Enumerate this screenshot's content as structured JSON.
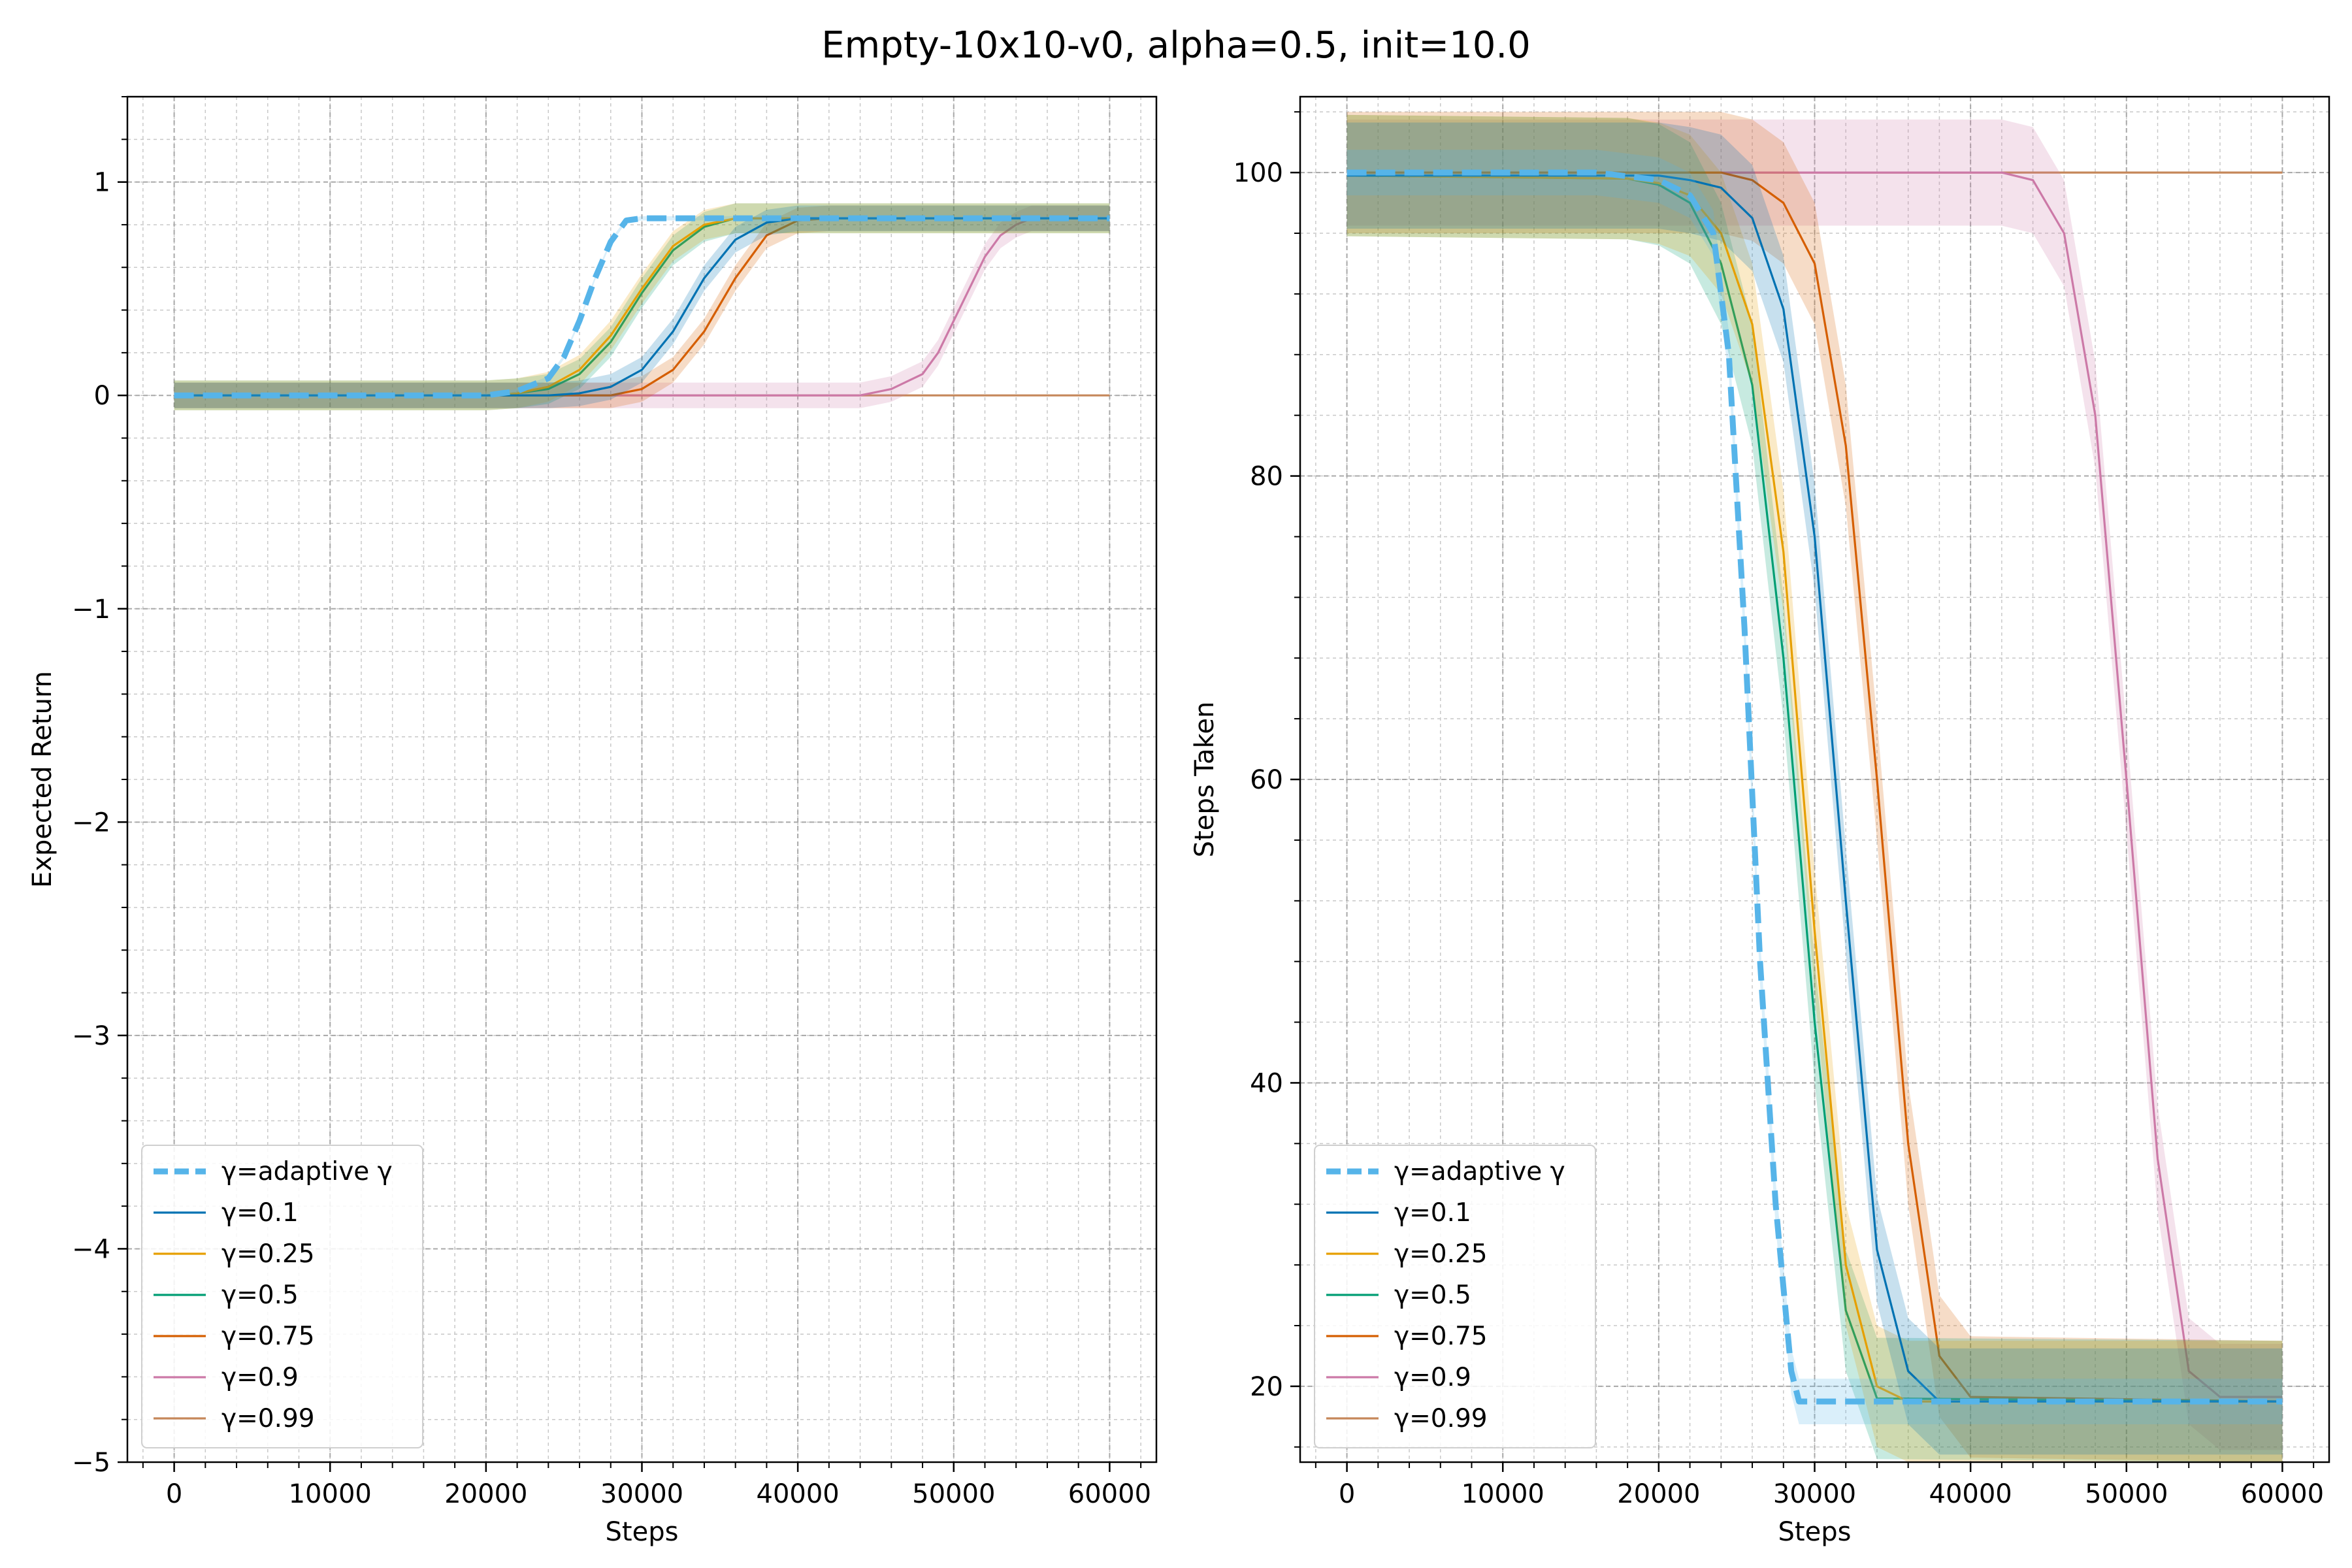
{
  "figure_title": "Empty-10x10-v0, alpha=0.5, init=10.0",
  "colors": {
    "adaptive": "#56b4e9",
    "g0.1": "#0072b2",
    "g0.25": "#e69f00",
    "g0.5": "#009e73",
    "g0.75": "#d55e00",
    "g0.9": "#cc79a7",
    "g0.99": "#c5875a"
  },
  "chart_data": [
    {
      "type": "line",
      "title": "",
      "xlabel": "Steps",
      "ylabel": "Expected Return",
      "xlim": [
        -3000,
        63000
      ],
      "ylim": [
        -5,
        1.4
      ],
      "xticks": [
        0,
        10000,
        20000,
        30000,
        40000,
        50000,
        60000
      ],
      "yticks": [
        1,
        0,
        -1,
        -2,
        -3,
        -4,
        -5
      ],
      "ytick_labels": [
        "1",
        "0",
        "−1",
        "−2",
        "−3",
        "−4",
        "−5"
      ],
      "grid": "major and minor, dashed",
      "legend_position": "lower left",
      "series": [
        {
          "name": "γ=adaptive γ",
          "color_key": "adaptive",
          "style": "dashed-thick",
          "x": [
            0,
            20000,
            22000,
            24000,
            25000,
            26000,
            27000,
            28000,
            29000,
            30000,
            40000,
            50000,
            60000
          ],
          "y": [
            0,
            0,
            0.02,
            0.08,
            0.18,
            0.35,
            0.55,
            0.72,
            0.82,
            0.83,
            0.83,
            0.83,
            0.83
          ],
          "band": 0.01
        },
        {
          "name": "γ=0.1",
          "color_key": "g0.1",
          "style": "solid",
          "x": [
            0,
            24000,
            26000,
            28000,
            30000,
            32000,
            34000,
            36000,
            38000,
            40000,
            60000
          ],
          "y": [
            0,
            0,
            0.01,
            0.04,
            0.12,
            0.3,
            0.55,
            0.73,
            0.81,
            0.83,
            0.83
          ],
          "band": 0.06
        },
        {
          "name": "γ=0.25",
          "color_key": "g0.25",
          "style": "solid",
          "x": [
            0,
            20000,
            22000,
            24000,
            26000,
            28000,
            30000,
            32000,
            34000,
            36000,
            38000,
            60000
          ],
          "y": [
            0,
            0,
            0.01,
            0.04,
            0.12,
            0.28,
            0.5,
            0.7,
            0.8,
            0.83,
            0.83,
            0.83
          ],
          "band": 0.07
        },
        {
          "name": "γ=0.5",
          "color_key": "g0.5",
          "style": "solid",
          "x": [
            0,
            20000,
            22000,
            24000,
            26000,
            28000,
            30000,
            32000,
            34000,
            36000,
            38000,
            60000
          ],
          "y": [
            0,
            0,
            0.01,
            0.03,
            0.1,
            0.25,
            0.48,
            0.68,
            0.79,
            0.83,
            0.83,
            0.83
          ],
          "band": 0.07
        },
        {
          "name": "γ=0.75",
          "color_key": "g0.75",
          "style": "solid",
          "x": [
            0,
            28000,
            30000,
            32000,
            34000,
            36000,
            38000,
            40000,
            42000,
            60000
          ],
          "y": [
            0,
            0,
            0.03,
            0.12,
            0.3,
            0.55,
            0.75,
            0.82,
            0.83,
            0.83
          ],
          "band": 0.06
        },
        {
          "name": "γ=0.9",
          "color_key": "g0.9",
          "style": "solid",
          "x": [
            0,
            44000,
            46000,
            48000,
            49000,
            50000,
            51000,
            52000,
            53000,
            54000,
            55000,
            56000,
            60000
          ],
          "y": [
            0,
            0,
            0.03,
            0.1,
            0.2,
            0.35,
            0.5,
            0.65,
            0.75,
            0.8,
            0.83,
            0.83,
            0.83
          ],
          "band": 0.06
        },
        {
          "name": "γ=0.99",
          "color_key": "g0.99",
          "style": "solid",
          "x": [
            0,
            60000
          ],
          "y": [
            0,
            0
          ],
          "band": 0
        }
      ]
    },
    {
      "type": "line",
      "title": "",
      "xlabel": "Steps",
      "ylabel": "Steps Taken",
      "xlim": [
        -3000,
        63000
      ],
      "ylim": [
        15,
        105
      ],
      "xticks": [
        0,
        10000,
        20000,
        30000,
        40000,
        50000,
        60000
      ],
      "yticks": [
        100,
        80,
        60,
        40,
        20
      ],
      "ytick_labels": [
        "100",
        "80",
        "60",
        "40",
        "20"
      ],
      "grid": "major and minor, dashed",
      "legend_position": "lower left",
      "series": [
        {
          "name": "γ=adaptive γ",
          "color_key": "adaptive",
          "style": "dashed-thick",
          "x": [
            0,
            16000,
            20000,
            22000,
            23500,
            24500,
            25500,
            26500,
            27500,
            28500,
            29000,
            30000,
            60000
          ],
          "y": [
            100,
            100,
            99.5,
            98.5,
            96,
            88,
            70,
            48,
            32,
            21,
            19,
            19,
            19
          ],
          "band": 1.5
        },
        {
          "name": "γ=0.1",
          "color_key": "g0.1",
          "style": "solid",
          "x": [
            0,
            20000,
            22000,
            24000,
            26000,
            28000,
            30000,
            32000,
            34000,
            36000,
            38000,
            60000
          ],
          "y": [
            99.8,
            99.8,
            99.5,
            99,
            97,
            91,
            76,
            52,
            29,
            21,
            19,
            19
          ],
          "band": 3.5
        },
        {
          "name": "γ=0.25",
          "color_key": "g0.25",
          "style": "solid",
          "x": [
            0,
            18000,
            20000,
            22000,
            24000,
            26000,
            28000,
            30000,
            32000,
            34000,
            36000,
            60000
          ],
          "y": [
            99.8,
            99.6,
            99.3,
            98.5,
            96,
            90,
            75,
            50,
            28,
            20,
            19,
            19
          ],
          "band": 4
        },
        {
          "name": "γ=0.5",
          "color_key": "g0.5",
          "style": "solid",
          "x": [
            0,
            18000,
            20000,
            22000,
            24000,
            26000,
            28000,
            30000,
            32000,
            34000,
            60000
          ],
          "y": [
            99.8,
            99.6,
            99.2,
            98,
            94,
            86,
            68,
            44,
            25,
            19.2,
            19
          ],
          "band": 4
        },
        {
          "name": "γ=0.75",
          "color_key": "g0.75",
          "style": "solid",
          "x": [
            0,
            24000,
            26000,
            28000,
            30000,
            32000,
            34000,
            36000,
            38000,
            40000,
            60000
          ],
          "y": [
            100,
            100,
            99.5,
            98,
            94,
            82,
            60,
            36,
            22,
            19.3,
            19
          ],
          "band": 4
        },
        {
          "name": "γ=0.9",
          "color_key": "g0.9",
          "style": "solid",
          "x": [
            0,
            42000,
            44000,
            46000,
            48000,
            50000,
            52000,
            54000,
            56000,
            60000
          ],
          "y": [
            100,
            100,
            99.5,
            96,
            84,
            60,
            35,
            21,
            19.3,
            19.3
          ],
          "band": 3.5
        },
        {
          "name": "γ=0.99",
          "color_key": "g0.99",
          "style": "solid",
          "x": [
            0,
            60000
          ],
          "y": [
            100,
            100
          ],
          "band": 0
        }
      ]
    }
  ]
}
